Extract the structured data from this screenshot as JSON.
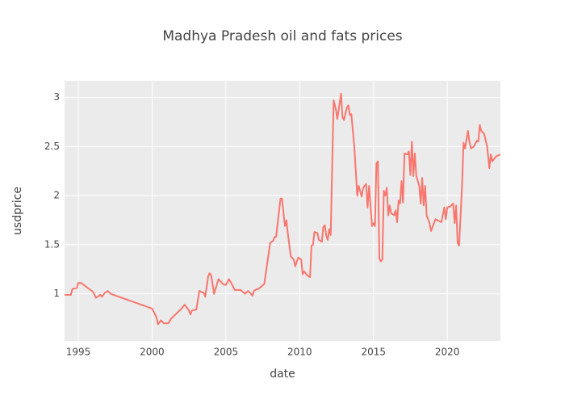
{
  "chart_data": {
    "type": "line",
    "title": "Madhya Pradesh oil and fats prices",
    "x_label": "date",
    "y_label": "usdprice",
    "color": "#f8766d",
    "grid": true,
    "xlim": [
      1994.07,
      2023.6
    ],
    "xticks": [
      1995,
      2000,
      2005,
      2010,
      2015,
      2020
    ],
    "ylim": [
      0.52,
      3.17
    ],
    "yticks": [
      1,
      1.5,
      2,
      2.5,
      3
    ],
    "x": [
      1994.07,
      1994.5,
      1994.6,
      1994.9,
      1995.0,
      1995.2,
      1996.0,
      1996.2,
      1996.5,
      1996.6,
      1996.8,
      1997.0,
      1997.2,
      2000.0,
      2000.3,
      2000.4,
      2000.6,
      2000.8,
      2001.1,
      2001.3,
      2002.0,
      2002.2,
      2002.5,
      2002.6,
      2002.7,
      2003.0,
      2003.2,
      2003.5,
      2003.6,
      2003.8,
      2003.9,
      2004.0,
      2004.2,
      2004.5,
      2004.8,
      2005.0,
      2005.2,
      2005.4,
      2005.6,
      2006.0,
      2006.3,
      2006.5,
      2006.7,
      2006.8,
      2006.9,
      2007.0,
      2007.2,
      2007.6,
      2008.0,
      2008.2,
      2008.3,
      2008.4,
      2008.7,
      2008.8,
      2009.0,
      2009.1,
      2009.2,
      2009.4,
      2009.6,
      2009.7,
      2009.9,
      2010.1,
      2010.2,
      2010.3,
      2010.5,
      2010.7,
      2010.8,
      2010.9,
      2011.0,
      2011.2,
      2011.3,
      2011.5,
      2011.6,
      2011.7,
      2011.8,
      2011.9,
      2012.0,
      2012.1,
      2012.3,
      2012.45,
      2012.55,
      2012.8,
      2012.9,
      2013.0,
      2013.2,
      2013.3,
      2013.4,
      2013.5,
      2013.7,
      2013.9,
      2014.0,
      2014.2,
      2014.3,
      2014.5,
      2014.6,
      2014.7,
      2014.9,
      2015.0,
      2015.1,
      2015.2,
      2015.3,
      2015.4,
      2015.5,
      2015.6,
      2015.7,
      2015.8,
      2015.9,
      2016.0,
      2016.1,
      2016.2,
      2016.4,
      2016.5,
      2016.6,
      2016.7,
      2016.8,
      2016.9,
      2017.0,
      2017.1,
      2017.3,
      2017.4,
      2017.5,
      2017.6,
      2017.7,
      2017.8,
      2017.9,
      2018.1,
      2018.2,
      2018.3,
      2018.4,
      2018.5,
      2018.6,
      2018.8,
      2018.9,
      2019.2,
      2019.6,
      2019.8,
      2019.9,
      2020.0,
      2020.2,
      2020.4,
      2020.5,
      2020.6,
      2020.7,
      2020.8,
      2021.0,
      2021.1,
      2021.2,
      2021.4,
      2021.5,
      2021.6,
      2021.8,
      2022.0,
      2022.1,
      2022.2,
      2022.3,
      2022.5,
      2022.7,
      2022.85,
      2022.95,
      2023.05,
      2023.3,
      2023.6
    ],
    "values": [
      0.99,
      0.99,
      1.05,
      1.06,
      1.11,
      1.11,
      1.02,
      0.96,
      0.99,
      0.97,
      1.01,
      1.03,
      1.0,
      0.85,
      0.76,
      0.69,
      0.73,
      0.7,
      0.7,
      0.75,
      0.85,
      0.89,
      0.83,
      0.79,
      0.83,
      0.84,
      1.03,
      1.01,
      0.97,
      1.18,
      1.21,
      1.19,
      1.0,
      1.15,
      1.1,
      1.09,
      1.15,
      1.1,
      1.04,
      1.04,
      1.0,
      1.03,
      1.0,
      0.98,
      1.03,
      1.04,
      1.05,
      1.1,
      1.52,
      1.54,
      1.58,
      1.58,
      1.97,
      1.97,
      1.69,
      1.75,
      1.61,
      1.38,
      1.35,
      1.28,
      1.37,
      1.35,
      1.2,
      1.23,
      1.19,
      1.17,
      1.49,
      1.5,
      1.63,
      1.62,
      1.55,
      1.53,
      1.68,
      1.7,
      1.59,
      1.55,
      1.66,
      1.6,
      2.97,
      2.88,
      2.78,
      3.04,
      2.8,
      2.77,
      2.9,
      2.92,
      2.82,
      2.83,
      2.5,
      2.0,
      2.1,
      1.99,
      2.08,
      2.12,
      1.88,
      2.1,
      1.69,
      1.72,
      1.69,
      2.33,
      2.35,
      1.36,
      1.33,
      1.35,
      2.05,
      2.0,
      2.08,
      1.8,
      1.9,
      1.82,
      1.8,
      1.85,
      1.73,
      1.95,
      1.92,
      2.15,
      1.93,
      2.43,
      2.42,
      2.45,
      2.21,
      2.55,
      2.2,
      2.43,
      2.2,
      2.1,
      1.92,
      2.18,
      1.9,
      2.1,
      1.8,
      1.72,
      1.64,
      1.76,
      1.73,
      1.88,
      1.76,
      1.88,
      1.89,
      1.92,
      1.72,
      1.9,
      1.52,
      1.49,
      2.1,
      2.54,
      2.48,
      2.66,
      2.55,
      2.48,
      2.5,
      2.56,
      2.55,
      2.72,
      2.66,
      2.63,
      2.5,
      2.28,
      2.42,
      2.35,
      2.4,
      2.42
    ]
  }
}
